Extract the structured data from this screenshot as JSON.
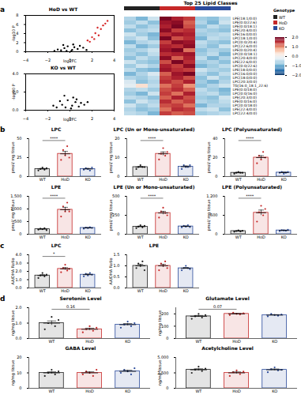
{
  "chart_data": [
    {
      "type": "scatter",
      "panel_label": "a",
      "title": "HoD vs WT",
      "xlabel": "log2FC",
      "ylabel": "-log10 P",
      "xlim": [
        -4,
        4
      ],
      "xticks": [
        -4,
        -2,
        0,
        2,
        4
      ],
      "ylim": [
        0,
        8
      ],
      "yticks": [
        0,
        2,
        4,
        6,
        8
      ],
      "x": [
        -0.3,
        0.2,
        -0.5,
        0.4,
        0.1,
        -0.8,
        0.7,
        -0.2,
        0.9,
        -1.1,
        1.2,
        0.3,
        -0.6,
        1.5,
        -1.4,
        1.6,
        2.0,
        2.3,
        2.6,
        2.8,
        3.0,
        3.2,
        2.5,
        3.4,
        2.2,
        1.8
      ],
      "y": [
        0.2,
        0.4,
        0.8,
        1.0,
        0.1,
        0.3,
        0.6,
        1.2,
        1.3,
        0.5,
        0.9,
        1.6,
        1.5,
        0.4,
        0.2,
        2.5,
        3.2,
        4.1,
        3.6,
        5.0,
        5.8,
        6.2,
        5.3,
        6.8,
        2.8,
        2.2
      ],
      "colors": [
        "#000000",
        "#000000",
        "#000000",
        "#000000",
        "#000000",
        "#000000",
        "#000000",
        "#000000",
        "#000000",
        "#000000",
        "#000000",
        "#000000",
        "#000000",
        "#000000",
        "#000000",
        "#d62728",
        "#d62728",
        "#d62728",
        "#d62728",
        "#d62728",
        "#d62728",
        "#d62728",
        "#d62728",
        "#d62728",
        "#d62728",
        "#d62728"
      ]
    },
    {
      "type": "scatter",
      "title": "KO vs WT",
      "xlabel": "log2FC",
      "ylabel": "-log10 P",
      "xlim": [
        -4,
        4
      ],
      "xticks": [
        -4,
        -2,
        0,
        2,
        4
      ],
      "ylim": [
        0,
        4
      ],
      "yticks": [
        0,
        2,
        4
      ],
      "x": [
        -0.4,
        0.2,
        0.5,
        -0.7,
        0.8,
        -0.2,
        1.0,
        -1.2,
        0.3,
        -0.9,
        1.3,
        0.1,
        -0.5,
        0.6,
        -1.5,
        1.6
      ],
      "y": [
        0.3,
        0.5,
        0.9,
        0.6,
        0.4,
        1.1,
        0.8,
        0.3,
        1.4,
        1.0,
        0.6,
        0.2,
        1.6,
        1.2,
        0.5,
        0.9
      ],
      "color": "#000000"
    },
    {
      "type": "heatmap",
      "title": "Top 25 Lipid Classes",
      "legend_title": "Genotype",
      "genotypes": [
        {
          "name": "WT",
          "color": "#222222"
        },
        {
          "name": "HoD",
          "color": "#c62828"
        },
        {
          "name": "KO",
          "color": "#2c4c9c"
        }
      ],
      "columns": [
        "WT",
        "WT",
        "WT",
        "HoD",
        "HoD",
        "HoD",
        "KO",
        "KO",
        "KO"
      ],
      "rows": [
        "LPE(18:1/0:0)",
        "LPE(0:0/22:6)",
        "LPE(0:0/18:1)",
        "LPE(20:4/0:0)",
        "LPE(16:0/0:0)",
        "LPC(18:1/0:0)",
        "LPC(0:0/20:4)",
        "LPC(22:6/0:0)",
        "LPE(0:0/20:4)",
        "LPC(0:0/18:1)",
        "LPC(20:4/0:0)",
        "LPE(22:6/0:0)",
        "LPC(0:0/22:6)",
        "LPE(18:0/0:0)",
        "LPC(16:0/0:0)",
        "LPC(18:0/0:0)",
        "LPC(20:3/0:0)",
        "TG(16:0_18:1_22:6)",
        "LPE(0:0/18:0)",
        "LPC(0:0/16:0)",
        "LPE(20:3/0:0)",
        "LPE(0:0/16:0)",
        "LPC(0:0/18:0)",
        "LPE(22:4/0:0)",
        "LPC(22:4/0:0)"
      ],
      "cells": [
        [
          -0.6,
          -0.9,
          -0.4,
          1.9,
          1.6,
          1.4,
          -0.7,
          -0.8,
          -0.5
        ],
        [
          -0.7,
          -0.5,
          -0.8,
          1.7,
          1.8,
          1.2,
          -0.6,
          -0.9,
          -0.4
        ],
        [
          -0.5,
          -0.8,
          -0.6,
          1.6,
          1.9,
          1.3,
          -0.8,
          -0.5,
          -0.7
        ],
        [
          -0.8,
          -0.6,
          -0.5,
          1.8,
          1.4,
          1.5,
          -0.6,
          -0.7,
          -0.8
        ],
        [
          -0.4,
          -0.7,
          -0.9,
          1.5,
          1.7,
          1.6,
          -0.7,
          -0.6,
          -0.5
        ],
        [
          -0.6,
          -0.4,
          -0.8,
          1.9,
          1.3,
          1.5,
          -0.9,
          -0.5,
          -0.6
        ],
        [
          -0.9,
          -0.6,
          -0.5,
          1.4,
          1.8,
          1.7,
          -0.5,
          -0.7,
          -0.8
        ],
        [
          -0.5,
          -0.9,
          -0.7,
          1.6,
          1.5,
          1.8,
          -0.6,
          -0.8,
          -0.4
        ],
        [
          -0.7,
          -0.6,
          -0.4,
          1.7,
          1.9,
          1.1,
          -0.8,
          -0.6,
          -0.7
        ],
        [
          -0.6,
          -0.8,
          -0.5,
          1.5,
          1.6,
          1.7,
          -0.7,
          -0.5,
          -0.9
        ],
        [
          -0.8,
          -0.5,
          -0.7,
          1.8,
          1.2,
          1.6,
          -0.5,
          -0.9,
          -0.6
        ],
        [
          -0.4,
          -0.7,
          -0.8,
          1.3,
          1.9,
          1.5,
          -0.7,
          -0.6,
          -0.8
        ],
        [
          -0.7,
          -0.4,
          -0.6,
          1.6,
          1.4,
          1.8,
          -0.9,
          -0.7,
          -0.5
        ],
        [
          -0.5,
          -0.8,
          -0.9,
          1.7,
          1.5,
          1.4,
          -0.4,
          -0.6,
          -0.7
        ],
        [
          -0.9,
          -0.6,
          -0.3,
          1.2,
          1.7,
          1.9,
          -0.6,
          -0.8,
          -0.5
        ],
        [
          -0.6,
          -0.7,
          -0.5,
          1.4,
          1.6,
          1.3,
          -0.8,
          -0.4,
          -0.7
        ],
        [
          -0.3,
          -0.8,
          -0.6,
          1.5,
          1.3,
          1.6,
          -0.7,
          -0.9,
          -0.6
        ],
        [
          -0.2,
          0.3,
          -0.5,
          1.1,
          1.4,
          0.9,
          -0.8,
          -0.6,
          -0.4
        ],
        [
          -0.6,
          -0.5,
          -0.7,
          1.3,
          1.5,
          1.2,
          -0.5,
          -0.7,
          -0.9
        ],
        [
          -0.7,
          -0.9,
          -0.4,
          1.4,
          1.1,
          1.6,
          -0.6,
          -0.5,
          -0.8
        ],
        [
          -0.5,
          -0.6,
          -0.8,
          1.2,
          1.6,
          1.3,
          -0.7,
          -0.8,
          -0.4
        ],
        [
          -0.8,
          -0.4,
          -0.6,
          1.5,
          1.2,
          1.4,
          -0.6,
          -0.7,
          -0.5
        ],
        [
          -0.4,
          -0.7,
          -0.5,
          1.3,
          1.4,
          1.1,
          -0.9,
          -0.6,
          -0.6
        ],
        [
          -0.6,
          -0.8,
          -0.7,
          1.1,
          1.5,
          1.4,
          -0.5,
          -0.4,
          -0.8
        ],
        [
          -0.5,
          -0.6,
          -0.9,
          1.4,
          1.2,
          1.3,
          -0.7,
          -0.6,
          -0.5
        ]
      ],
      "color_range": [
        -2,
        2
      ],
      "color_ticks": [
        -2,
        -1,
        0,
        1,
        2
      ]
    },
    {
      "type": "bar",
      "panel_label": "b",
      "title": "LPC",
      "ylabel": "pmol/ mg tissue",
      "categories": [
        "WT",
        "HoD",
        "KO"
      ],
      "colors": [
        "#222222",
        "#c62828",
        "#2c4c9c"
      ],
      "values": [
        10,
        30,
        10
      ],
      "errors": [
        0.8,
        3.2,
        0.7
      ],
      "points": [
        [
          8,
          10,
          12,
          9,
          11
        ],
        [
          22,
          35,
          28,
          40,
          25
        ],
        [
          9,
          11,
          10,
          8,
          12
        ]
      ],
      "ylim": [
        0,
        50
      ],
      "yticks": [
        0,
        25,
        50
      ],
      "comparisons": [
        {
          "from": "WT",
          "to": "HoD",
          "label": "****"
        }
      ]
    },
    {
      "type": "bar",
      "title": "LPC (Un or Mono-unsaturated)",
      "ylabel": "pmol/ mg tissue",
      "categories": [
        "WT",
        "HoD",
        "KO"
      ],
      "colors": [
        "#222222",
        "#c62828",
        "#2c4c9c"
      ],
      "values": [
        5,
        12,
        5.2
      ],
      "errors": [
        0.3,
        1.0,
        0.4
      ],
      "points": [
        [
          4,
          5,
          6,
          5,
          5
        ],
        [
          9,
          12,
          15,
          11,
          13
        ],
        [
          4,
          6,
          5,
          5,
          6
        ]
      ],
      "ylim": [
        0,
        20
      ],
      "yticks": [
        0,
        10,
        20
      ],
      "comparisons": [
        {
          "from": "WT",
          "to": "HoD",
          "label": "****"
        }
      ]
    },
    {
      "type": "bar",
      "title": "LPC (Polyunsaturated)",
      "ylabel": "pmol/ mg tissue",
      "categories": [
        "WT",
        "HoD",
        "KO"
      ],
      "colors": [
        "#222222",
        "#c62828",
        "#2c4c9c"
      ],
      "values": [
        4,
        20,
        4.2
      ],
      "errors": [
        0.3,
        2,
        0.4
      ],
      "points": [
        [
          3,
          4,
          5,
          4,
          4
        ],
        [
          14,
          22,
          18,
          26,
          20
        ],
        [
          4,
          5,
          3,
          4,
          5
        ]
      ],
      "ylim": [
        0,
        40
      ],
      "yticks": [
        0,
        20,
        40
      ],
      "comparisons": [
        {
          "from": "WT",
          "to": "HoD",
          "label": "****"
        }
      ]
    },
    {
      "type": "bar",
      "title": "LPE",
      "ylabel": "pmol/ mg tissue",
      "categories": [
        "WT",
        "HoD",
        "KO"
      ],
      "colors": [
        "#222222",
        "#c62828",
        "#2c4c9c"
      ],
      "values": [
        200,
        970,
        250
      ],
      "errors": [
        14,
        95,
        10
      ],
      "points": [
        [
          180,
          220,
          200,
          240,
          160
        ],
        [
          700,
          1100,
          900,
          1250,
          900
        ],
        [
          220,
          260,
          240,
          280,
          250
        ]
      ],
      "ylim": [
        0,
        1500
      ],
      "yticks": [
        0,
        500,
        1000,
        1500
      ],
      "comparisons": [
        {
          "from": "WT",
          "to": "HoD",
          "label": "****"
        }
      ]
    },
    {
      "type": "bar",
      "title": "LPE (Un or Mono-unsaturated)",
      "ylabel": "pmol/ mg tissue",
      "categories": [
        "WT",
        "HoD",
        "KO"
      ],
      "colors": [
        "#222222",
        "#c62828",
        "#2c4c9c"
      ],
      "values": [
        100,
        280,
        103
      ],
      "errors": [
        7,
        22,
        5
      ],
      "points": [
        [
          80,
          100,
          120,
          90,
          110
        ],
        [
          220,
          300,
          350,
          280,
          250
        ],
        [
          90,
          110,
          100,
          120,
          95
        ]
      ],
      "ylim": [
        0,
        500
      ],
      "yticks": [
        0,
        250,
        500
      ],
      "comparisons": [
        {
          "from": "WT",
          "to": "HoD",
          "label": "****"
        }
      ]
    },
    {
      "type": "bar",
      "title": "LPE (Polyunsaturated)",
      "ylabel": "pmol/ mg tissue",
      "categories": [
        "WT",
        "HoD",
        "KO"
      ],
      "colors": [
        "#222222",
        "#c62828",
        "#2c4c9c"
      ],
      "values": [
        100,
        680,
        120
      ],
      "errors": [
        7,
        86,
        7
      ],
      "points": [
        [
          80,
          100,
          120,
          90,
          110
        ],
        [
          400,
          700,
          900,
          600,
          800
        ],
        [
          100,
          130,
          120,
          110,
          140
        ]
      ],
      "ylim": [
        0,
        1200
      ],
      "yticks": [
        0,
        600,
        1200
      ],
      "comparisons": [
        {
          "from": "WT",
          "to": "HoD",
          "label": "****"
        }
      ]
    },
    {
      "type": "bar",
      "panel_label": "c",
      "title": "LPC",
      "ylabel": "AA/DHA Ratio",
      "categories": [
        "WT",
        "HoD",
        "KO"
      ],
      "colors": [
        "#222222",
        "#c62828",
        "#2c4c9c"
      ],
      "values": [
        1.5,
        2.3,
        1.6
      ],
      "errors": [
        0.1,
        0.15,
        0.07
      ],
      "points": [
        [
          1.2,
          1.5,
          1.8,
          1.4,
          1.6
        ],
        [
          1.9,
          2.4,
          2.8,
          2.1,
          2.3
        ],
        [
          1.4,
          1.7,
          1.5,
          1.8,
          1.6
        ]
      ],
      "ylim": [
        0,
        4
      ],
      "yticks": [
        0,
        1,
        2,
        3,
        4
      ],
      "comparisons": [
        {
          "from": "WT",
          "to": "HoD",
          "label": "*"
        }
      ]
    },
    {
      "type": "bar",
      "title": "LPE",
      "ylabel": "AA/DHA Ratio",
      "categories": [
        "WT",
        "HoD",
        "KO"
      ],
      "colors": [
        "#222222",
        "#c62828",
        "#2c4c9c"
      ],
      "values": [
        1.0,
        1.0,
        0.89
      ],
      "errors": [
        0.07,
        0.07,
        0.03
      ],
      "points": [
        [
          0.9,
          1.1,
          1.0,
          1.2,
          0.8
        ],
        [
          0.8,
          1.1,
          1.0,
          1.2,
          0.9
        ],
        [
          0.8,
          0.9,
          1.0,
          0.9,
          0.85
        ]
      ],
      "ylim": [
        0,
        1.5
      ],
      "yticks": [
        0,
        0.5,
        1,
        1.5
      ],
      "comparisons": []
    },
    {
      "type": "bar",
      "panel_label": "d",
      "title": "Serotonin Level",
      "ylabel": "ng/mg tissue",
      "categories": [
        "WT",
        "HoD",
        "KO"
      ],
      "colors": [
        "#222222",
        "#c62828",
        "#2c4c9c"
      ],
      "values": [
        1.0,
        0.6,
        0.9
      ],
      "errors": [
        0.14,
        0.07,
        0.07
      ],
      "points": [
        [
          0.6,
          1.0,
          1.4,
          0.8,
          1.2
        ],
        [
          0.4,
          0.6,
          0.8,
          0.5,
          0.7
        ],
        [
          0.7,
          0.9,
          1.1,
          0.8,
          1.0
        ]
      ],
      "ylim": [
        0,
        2
      ],
      "yticks": [
        0,
        1,
        2
      ],
      "comparisons": [
        {
          "from": "WT",
          "to": "HoD",
          "label": "0.16"
        }
      ]
    },
    {
      "type": "bar",
      "title": "Glutamate Level",
      "ylabel": "ng/mg tissue",
      "categories": [
        "WT",
        "HoD",
        "KO"
      ],
      "colors": [
        "#222222",
        "#c62828",
        "#2c4c9c"
      ],
      "values": [
        180,
        200,
        190
      ],
      "errors": [
        7,
        3.5,
        3.5
      ],
      "points": [
        [
          160,
          180,
          200,
          170,
          190
        ],
        [
          190,
          210,
          200,
          195,
          205
        ],
        [
          180,
          200,
          190,
          185,
          195
        ]
      ],
      "ylim": [
        0,
        250
      ],
      "yticks": [
        0,
        100,
        200
      ],
      "comparisons": [
        {
          "from": "WT",
          "to": "HoD",
          "label": "0.07"
        }
      ]
    },
    {
      "type": "bar",
      "title": "GABA Level",
      "ylabel": "ng/mg tissue",
      "categories": [
        "WT",
        "HoD",
        "KO"
      ],
      "colors": [
        "#222222",
        "#c62828",
        "#2c4c9c"
      ],
      "values": [
        10,
        10,
        11
      ],
      "errors": [
        0.7,
        0.7,
        0.7
      ],
      "points": [
        [
          8,
          10,
          12,
          9,
          11
        ],
        [
          9,
          11,
          10,
          8,
          12
        ],
        [
          10,
          12,
          11,
          9,
          13
        ]
      ],
      "ylim": [
        0,
        20
      ],
      "yticks": [
        0,
        10,
        20
      ],
      "comparisons": []
    },
    {
      "type": "bar",
      "title": "Acetylcholine Level",
      "ylabel": "ng/mg tissue",
      "categories": [
        "WT",
        "HoD",
        "KO"
      ],
      "colors": [
        "#222222",
        "#c62828",
        "#2c4c9c"
      ],
      "values": [
        3000,
        2500,
        3000
      ],
      "errors": [
        170,
        160,
        130
      ],
      "points": [
        [
          2500,
          3000,
          3500,
          2800,
          3200
        ],
        [
          2000,
          2600,
          2900,
          2300,
          2700
        ],
        [
          2600,
          3100,
          3400,
          2900,
          3000
        ]
      ],
      "ylim": [
        0,
        5000
      ],
      "yticks": [
        0,
        2500,
        5000
      ],
      "comparisons": []
    }
  ]
}
